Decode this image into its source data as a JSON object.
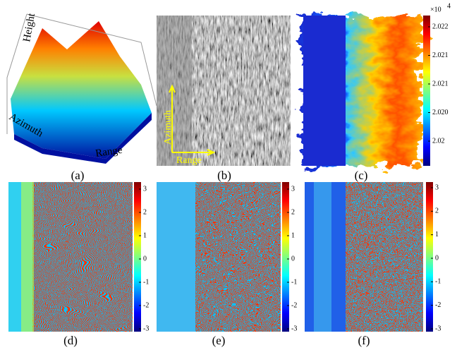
{
  "panels": [
    {
      "label": "(a)",
      "axes": [
        "Height",
        "Azimuth",
        "Range"
      ]
    },
    {
      "label": "(b)",
      "axes": [
        "Azimuth",
        "Range"
      ]
    },
    {
      "label": "(c)",
      "colorbar": {
        "exponent": "×10",
        "power": "4",
        "ticks": [
          "2.022",
          "2.021",
          "2.021",
          "2.020",
          "2.02"
        ]
      }
    },
    {
      "label": "(d)",
      "colorbar": {
        "ticks": [
          "3",
          "2",
          "1",
          "0",
          "-1",
          "-2",
          "-3"
        ]
      }
    },
    {
      "label": "(e)",
      "colorbar": {
        "ticks": [
          "3",
          "2",
          "1",
          "0",
          "-1",
          "-2",
          "-3"
        ]
      }
    },
    {
      "label": "(f)",
      "colorbar": {
        "ticks": [
          "3",
          "2",
          "1",
          "0",
          "-1",
          "-2",
          "-3"
        ]
      }
    }
  ]
}
